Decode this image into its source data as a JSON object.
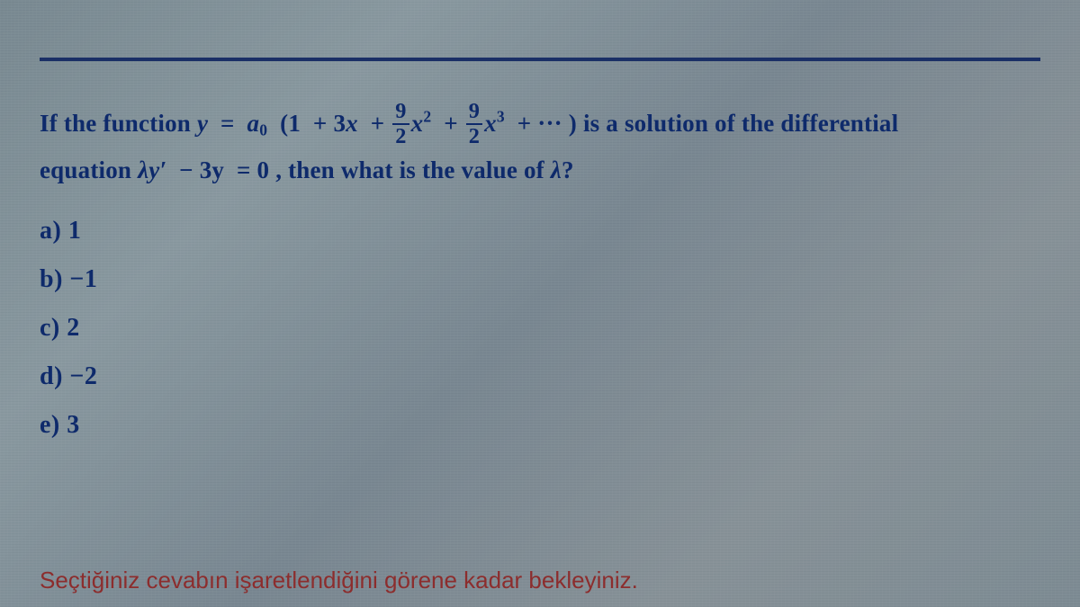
{
  "colors": {
    "text": "#0e2a6b",
    "rule": "#1a2f66",
    "footer": "#8c2d2d"
  },
  "question": {
    "line1_prefix": "If the function ",
    "line1_suffix": " is a solution of the differential",
    "line2_prefix": "equation ",
    "line2_suffix": ", then what is the value of ",
    "line2_end": "?",
    "y_eq": "y",
    "a0": "a",
    "a0_sub": "0",
    "coef1": "1",
    "coef2": "3",
    "x": "x",
    "frac_num": "9",
    "frac_den": "2",
    "ellipsis": "···",
    "lambda": "λ",
    "yprime": "y′",
    "minus3y": "3y",
    "zero": "0"
  },
  "options": [
    {
      "letter": "a)",
      "value": "1"
    },
    {
      "letter": "b)",
      "value": "−1"
    },
    {
      "letter": "c)",
      "value": "2"
    },
    {
      "letter": "d)",
      "value": "−2"
    },
    {
      "letter": "e)",
      "value": "3"
    }
  ],
  "footer": "Seçtiğiniz cevabın işaretlendiğini görene kadar bekleyiniz."
}
